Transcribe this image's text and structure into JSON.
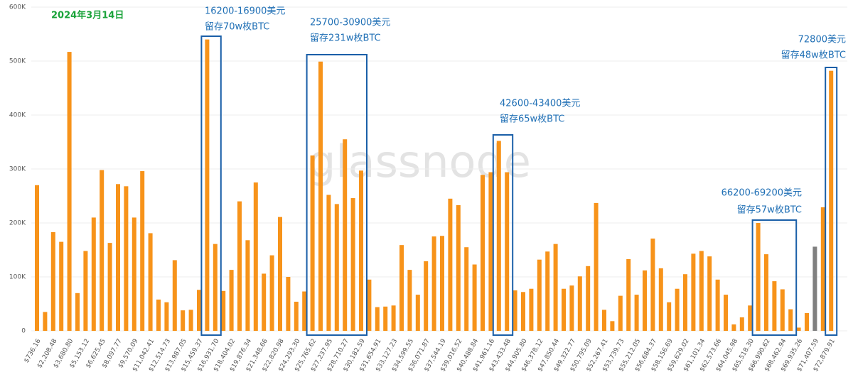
{
  "chart_data": {
    "type": "bar",
    "date_label": "2024年3月14日",
    "watermark": "glassnode",
    "categories": [
      "$736.16",
      null,
      "$2,208.48",
      null,
      "$3,680.80",
      null,
      "$5,153.12",
      null,
      "$6,625.45",
      null,
      "$8,097.77",
      null,
      "$9,570.09",
      null,
      "$11,042.41",
      null,
      "$12,514.73",
      null,
      "$13,987.05",
      null,
      "$15,459.37",
      null,
      "$16,931.70",
      null,
      "$18,404.02",
      null,
      "$19,876.34",
      null,
      "$21,348.66",
      null,
      "$22,820.98",
      null,
      "$24,293.30",
      null,
      "$25,765.62",
      null,
      "$27,237.95",
      null,
      "$28,710.27",
      null,
      "$30,182.59",
      null,
      "$31,654.91",
      null,
      "$33,127.23",
      null,
      "$34,599.55",
      null,
      "$36,071.87",
      null,
      "$37,544.19",
      null,
      "$39,016.52",
      null,
      "$40,488.84",
      null,
      "$41,961.16",
      null,
      "$43,433.48",
      null,
      "$44,905.80",
      null,
      "$46,378.12",
      null,
      "$47,850.44",
      null,
      "$49,322.77",
      null,
      "$50,795.09",
      null,
      "$52,267.41",
      null,
      "$53,739.73",
      null,
      "$55,212.05",
      null,
      "$56,684.37",
      null,
      "$58,156.69",
      null,
      "$59,629.02",
      null,
      "$61,101.34",
      null,
      "$62,573.66",
      null,
      "$64,045.98",
      null,
      "$65,518.30",
      null,
      "$66,990.62",
      null,
      "$68,462.94",
      null,
      "$69,935.26",
      null,
      "$71,407.59",
      null,
      "$72,879.91"
    ],
    "values": [
      270000,
      35000,
      183000,
      165000,
      517000,
      70000,
      148000,
      210000,
      298000,
      163000,
      272000,
      268000,
      210000,
      296000,
      181000,
      58000,
      53000,
      131000,
      38000,
      39000,
      76000,
      540000,
      161000,
      74000,
      113000,
      240000,
      168000,
      275000,
      106000,
      140000,
      211000,
      100000,
      54000,
      73000,
      325000,
      499000,
      252000,
      235000,
      355000,
      246000,
      297000,
      95000,
      44000,
      45000,
      47000,
      159000,
      113000,
      67000,
      129000,
      175000,
      176000,
      245000,
      233000,
      155000,
      123000,
      289000,
      294000,
      352000,
      294000,
      75000,
      72000,
      78000,
      132000,
      147000,
      161000,
      78000,
      84000,
      101000,
      120000,
      237000,
      39000,
      18000,
      65000,
      133000,
      67000,
      112000,
      171000,
      116000,
      53000,
      78000,
      105000,
      143000,
      148000,
      138000,
      95000,
      67000,
      12000,
      25000,
      47000,
      200000,
      142000,
      92000,
      77000,
      40000,
      6000,
      33000,
      156000,
      229000,
      482000
    ],
    "color": "#f7931a",
    "highlight_index": 96,
    "highlight_color": "#808080",
    "ylim": [
      0,
      600000
    ],
    "yticks": [
      0,
      {
        "value": 100000,
        "label": "100K"
      },
      {
        "value": 200000,
        "label": "200K"
      },
      {
        "value": 300000,
        "label": "300K"
      },
      {
        "value": 400000,
        "label": "400K"
      },
      {
        "value": 500000,
        "label": "500K"
      },
      {
        "value": 600000,
        "label": "600K"
      }
    ],
    "grid": true,
    "annotations": [
      {
        "lines": [
          "16200-16900美元",
          "留存70w枚BTC"
        ]
      },
      {
        "lines": [
          "25700-30900美元",
          "留存231w枚BTC"
        ]
      },
      {
        "lines": [
          "42600-43400美元",
          "留存65w枚BTC"
        ]
      },
      {
        "lines": [
          "66200-69200美元",
          "留存57w枚BTC"
        ]
      },
      {
        "lines": [
          "72800美元",
          "留存48w枚BTC"
        ]
      }
    ]
  }
}
